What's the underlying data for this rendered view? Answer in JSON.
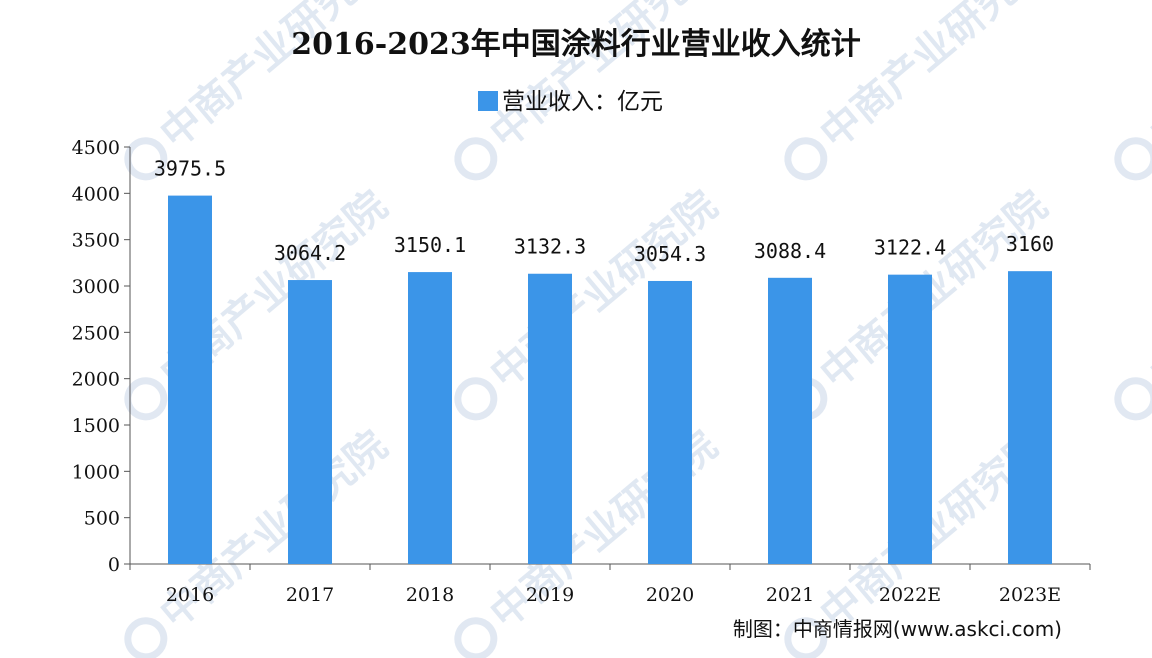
{
  "chart_data": {
    "type": "bar",
    "title": "2016-2023年中国涂料行业营业收入统计",
    "legend": {
      "position": "top",
      "entries": [
        "营业收入：亿元"
      ]
    },
    "series": [
      {
        "name": "营业收入：亿元",
        "color": "#3b95e8",
        "values": [
          3975.5,
          3064.2,
          3150.1,
          3132.3,
          3054.3,
          3088.4,
          3122.4,
          3160
        ],
        "labels": [
          "3975.5",
          "3064.2",
          "3150.1",
          "3132.3",
          "3054.3",
          "3088.4",
          "3122.4",
          "3160"
        ]
      }
    ],
    "categories": [
      "2016",
      "2017",
      "2018",
      "2019",
      "2020",
      "2021",
      "2022E",
      "2023E"
    ],
    "y_ticks": [
      "0",
      "500",
      "1000",
      "1500",
      "2000",
      "2500",
      "3000",
      "3500",
      "4000",
      "4500"
    ],
    "ylim": [
      0,
      4500
    ],
    "grid": false,
    "xlabel": "",
    "ylabel": ""
  },
  "source": "制图：中商情报网(www.askci.com)",
  "watermark": {
    "text": "中商产业研究院",
    "color": "#c8d6e8"
  }
}
